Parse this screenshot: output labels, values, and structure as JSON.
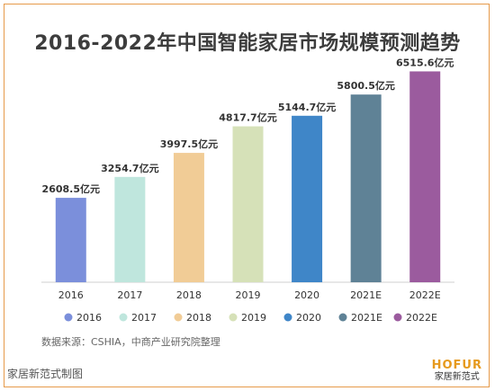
{
  "chart_data": {
    "type": "bar",
    "title": "2016-2022年中国智能家居市场规模预测趋势",
    "categories": [
      "2016",
      "2017",
      "2018",
      "2019",
      "2020",
      "2021E",
      "2022E"
    ],
    "values": [
      2608.5,
      3254.7,
      3997.5,
      4817.7,
      5144.7,
      5800.5,
      6515.6
    ],
    "value_labels": [
      "2608.5亿元",
      "3254.7亿元",
      "3997.5亿元",
      "4817.7亿元",
      "5144.7亿元",
      "5800.5亿元",
      "6515.6亿元"
    ],
    "colors": [
      "#7b8fdb",
      "#bfe6dd",
      "#f1cc96",
      "#d6e1b8",
      "#3f86c8",
      "#5f8296",
      "#9b5b9e"
    ],
    "ylim": [
      0,
      7000
    ],
    "legend": {
      "position": "bottom",
      "entries": [
        "2016",
        "2017",
        "2018",
        "2019",
        "2020",
        "2021E",
        "2022E"
      ]
    }
  },
  "source_note": "数据来源：CSHIA，中商产业研究院整理",
  "maker_note": "家居新范式制图",
  "logo": {
    "brand": "HOFUR",
    "sub": "家居新范式"
  }
}
